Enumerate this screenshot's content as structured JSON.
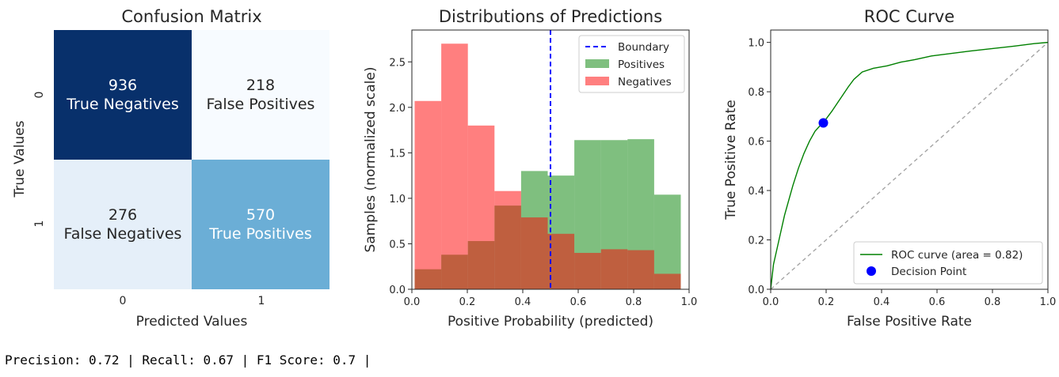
{
  "chart_data": [
    {
      "type": "heatmap",
      "title": "Confusion Matrix",
      "xlabel": "Predicted Values",
      "ylabel": "True Values",
      "xticklabels": [
        "0",
        "1"
      ],
      "yticklabels": [
        "0",
        "1"
      ],
      "cells": [
        {
          "row": 0,
          "col": 0,
          "count": "936",
          "label": "True Negatives",
          "color": "#08306b",
          "text_color": "#ffffff"
        },
        {
          "row": 0,
          "col": 1,
          "count": "218",
          "label": "False Positives",
          "color": "#f7fbff",
          "text_color": "#262626"
        },
        {
          "row": 1,
          "col": 0,
          "count": "276",
          "label": "False Negatives",
          "color": "#e5eff9",
          "text_color": "#262626"
        },
        {
          "row": 1,
          "col": 1,
          "count": "570",
          "label": "True Positives",
          "color": "#6baed6",
          "text_color": "#ffffff"
        }
      ]
    },
    {
      "type": "bar",
      "title": "Distributions of Predictions",
      "xlabel": "Positive Probability (predicted)",
      "ylabel": "Samples (normalized scale)",
      "xlim": [
        0,
        1
      ],
      "ylim": [
        0,
        2.85
      ],
      "xticks": [
        "0.0",
        "0.2",
        "0.4",
        "0.6",
        "0.8",
        "1.0"
      ],
      "yticks": [
        "0.0",
        "0.5",
        "1.0",
        "1.5",
        "2.0",
        "2.5"
      ],
      "series": [
        {
          "name": "Positives",
          "color": "#008000",
          "bin_edges": [
            0.01,
            0.106,
            0.202,
            0.298,
            0.394,
            0.49,
            0.586,
            0.682,
            0.778,
            0.874,
            0.97
          ],
          "values": [
            0.22,
            0.38,
            0.53,
            0.92,
            1.3,
            1.25,
            1.64,
            1.64,
            1.65,
            1.04
          ]
        },
        {
          "name": "Negatives",
          "color": "#ff0000",
          "bin_edges": [
            0.01,
            0.106,
            0.202,
            0.298,
            0.394,
            0.49,
            0.586,
            0.682,
            0.778,
            0.874,
            0.97
          ],
          "values": [
            2.07,
            2.7,
            1.8,
            1.08,
            0.79,
            0.61,
            0.4,
            0.44,
            0.43,
            0.17
          ]
        }
      ],
      "boundary": {
        "name": "Boundary",
        "x": 0.5,
        "color": "#0000ff"
      },
      "legend": {
        "placement": "top-right",
        "entries": [
          "Boundary",
          "Positives",
          "Negatives"
        ]
      }
    },
    {
      "type": "line",
      "title": "ROC Curve",
      "xlabel": "False Positive Rate",
      "ylabel": "True Positive Rate",
      "xlim": [
        0,
        1
      ],
      "ylim": [
        0,
        1.05
      ],
      "xticks": [
        "0.0",
        "0.2",
        "0.4",
        "0.6",
        "0.8",
        "1.0"
      ],
      "yticks": [
        "0.0",
        "0.2",
        "0.4",
        "0.6",
        "0.8",
        "1.0"
      ],
      "roc": {
        "name": "ROC curve (area = 0.82)",
        "color": "#008000",
        "x": [
          0,
          0.005,
          0.01,
          0.02,
          0.03,
          0.04,
          0.05,
          0.06,
          0.08,
          0.1,
          0.12,
          0.14,
          0.16,
          0.18,
          0.19,
          0.22,
          0.25,
          0.28,
          0.3,
          0.33,
          0.37,
          0.42,
          0.47,
          0.52,
          0.58,
          0.65,
          0.72,
          0.8,
          0.88,
          0.95,
          1.0
        ],
        "y": [
          0,
          0.05,
          0.1,
          0.15,
          0.2,
          0.25,
          0.3,
          0.34,
          0.42,
          0.49,
          0.55,
          0.6,
          0.64,
          0.665,
          0.675,
          0.72,
          0.77,
          0.82,
          0.85,
          0.88,
          0.895,
          0.905,
          0.92,
          0.93,
          0.945,
          0.955,
          0.965,
          0.975,
          0.985,
          0.995,
          1.0
        ]
      },
      "diagonal": {
        "x": [
          0,
          1
        ],
        "y": [
          0,
          1
        ],
        "color": "#a0a0a0"
      },
      "decision_point": {
        "name": "Decision Point",
        "x": 0.19,
        "y": 0.674,
        "color": "#0000ff"
      },
      "legend": {
        "placement": "lower-right",
        "entries": [
          "ROC curve (area = 0.82)",
          "Decision Point"
        ]
      }
    }
  ],
  "metrics_text": "Precision: 0.72 | Recall: 0.67 | F1 Score: 0.7 |"
}
